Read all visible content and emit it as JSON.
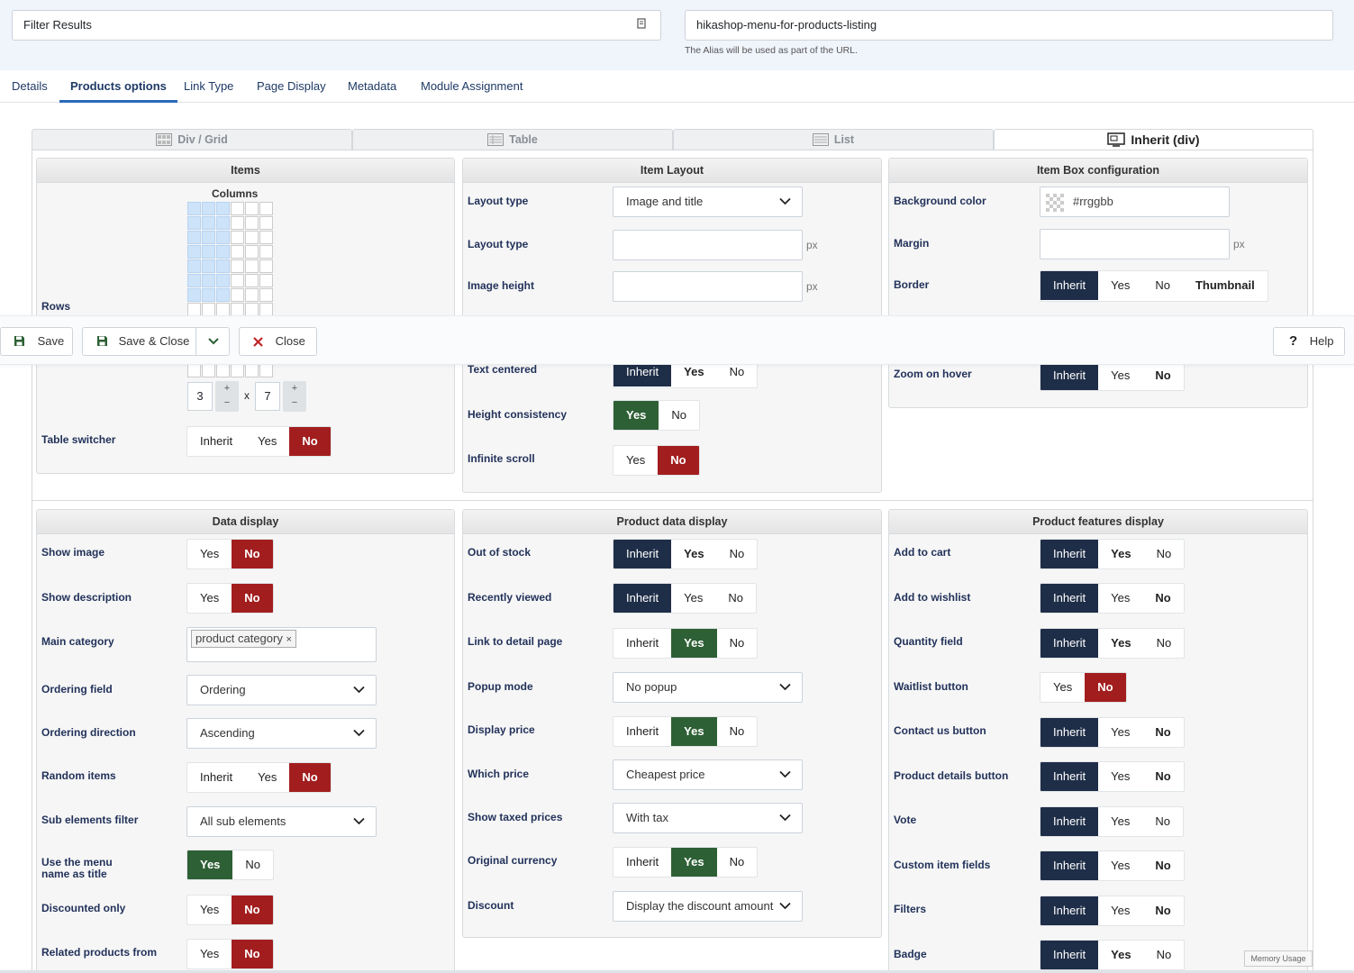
{
  "form": {
    "title_value": "Filter Results",
    "alias_value": "hikashop-menu-for-products-listing",
    "alias_hint": "The Alias will be used as part of the URL."
  },
  "tabs": [
    "Details",
    "Products options",
    "Link Type",
    "Page Display",
    "Metadata",
    "Module Assignment"
  ],
  "layout_tabs": [
    "Div / Grid",
    "Table",
    "List",
    "Inherit (div)"
  ],
  "toolbar": {
    "save": "Save",
    "save_close": "Save & Close",
    "close": "Close",
    "help": "Help"
  },
  "items_panel": {
    "title": "Items",
    "columns_label": "Columns",
    "rows_label": "Rows",
    "dim_x": "3",
    "dim_sep": "x",
    "dim_y": "7",
    "plus": "+",
    "minus": "−",
    "table_switcher_label": "Table switcher",
    "table_switcher_opts": [
      "Inherit",
      "Yes",
      "No"
    ]
  },
  "item_layout": {
    "title": "Item Layout",
    "layout_type_label": "Layout type",
    "layout_type_value": "Image and title",
    "layout_type2_label": "Layout type",
    "image_height_label": "Image height",
    "px": "px",
    "text_centered_label": "Text centered",
    "text_centered_opts": [
      "Inherit",
      "Yes",
      "No"
    ],
    "height_consistency_label": "Height consistency",
    "height_consistency_opts": [
      "Yes",
      "No"
    ],
    "infinite_scroll_label": "Infinite scroll",
    "infinite_scroll_opts": [
      "Yes",
      "No"
    ]
  },
  "item_box": {
    "title": "Item Box configuration",
    "bg_color_label": "Background color",
    "bg_color_placeholder": "#rrggbb",
    "margin_label": "Margin",
    "border_label": "Border",
    "border_opts": [
      "Inherit",
      "Yes",
      "No",
      "Thumbnail"
    ],
    "zoom_label": "Zoom on hover",
    "zoom_opts": [
      "Inherit",
      "Yes",
      "No"
    ]
  },
  "data_display": {
    "title": "Data display",
    "show_image": "Show image",
    "show_description": "Show description",
    "main_category": "Main category",
    "main_category_tag": "product category",
    "ordering_field": "Ordering field",
    "ordering_field_value": "Ordering",
    "ordering_direction": "Ordering direction",
    "ordering_direction_value": "Ascending",
    "random_items": "Random items",
    "sub_elements_filter": "Sub elements filter",
    "sub_elements_value": "All sub elements",
    "menu_name_title": "Use the menu name as title",
    "discounted_only": "Discounted only",
    "related_products": "Related products from"
  },
  "product_data": {
    "title": "Product data display",
    "out_of_stock": "Out of stock",
    "recently_viewed": "Recently viewed",
    "link_detail": "Link to detail page",
    "popup_mode": "Popup mode",
    "popup_value": "No popup",
    "display_price": "Display price",
    "which_price": "Which price",
    "which_price_value": "Cheapest price",
    "show_taxed": "Show taxed prices",
    "show_taxed_value": "With tax",
    "original_currency": "Original currency",
    "discount": "Discount",
    "discount_value": "Display the discount amount"
  },
  "product_features": {
    "title": "Product features display",
    "add_to_cart": "Add to cart",
    "add_to_wishlist": "Add to wishlist",
    "quantity_field": "Quantity field",
    "waitlist": "Waitlist button",
    "contact_us": "Contact us button",
    "details_button": "Product details button",
    "vote": "Vote",
    "custom_fields": "Custom item fields",
    "filters": "Filters",
    "badge": "Badge"
  },
  "opt": {
    "inherit": "Inherit",
    "yes": "Yes",
    "no": "No"
  },
  "memory_usage": "Memory Usage"
}
